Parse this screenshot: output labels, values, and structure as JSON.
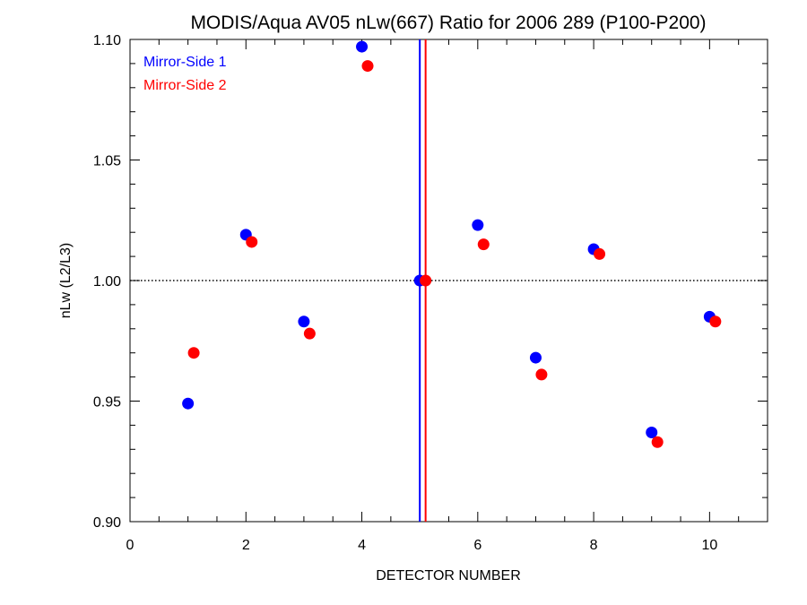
{
  "chart_data": {
    "type": "scatter",
    "title": "MODIS/Aqua AV05 nLw(667) Ratio for 2006 289 (P100-P200)",
    "xlabel": "DETECTOR NUMBER",
    "ylabel": "nLw (L2/L3)",
    "xlim": [
      0,
      11
    ],
    "ylim": [
      0.9,
      1.1
    ],
    "x_ticks": [
      0,
      2,
      4,
      6,
      8,
      10
    ],
    "x_tick_labels": [
      "0",
      "2",
      "4",
      "6",
      "8",
      "10"
    ],
    "y_ticks": [
      0.9,
      0.95,
      1.0,
      1.05,
      1.1
    ],
    "y_tick_labels": [
      "0.90",
      "0.95",
      "1.00",
      "1.05",
      "1.10"
    ],
    "x_minor_step": 0.5,
    "y_minor_step": 0.01,
    "grid": false,
    "legend_position": "top-left",
    "reference_line": {
      "y": 1.0,
      "style": "dotted",
      "color": "#000000"
    },
    "vertical_lines": [
      {
        "x": 5.0,
        "color": "#0000ff"
      },
      {
        "x": 5.1,
        "color": "#ff0000"
      }
    ],
    "series": [
      {
        "name": "Mirror-Side 1",
        "color": "#0000ff",
        "x": [
          1,
          2,
          3,
          4,
          5,
          6,
          7,
          8,
          9,
          10
        ],
        "y": [
          0.949,
          1.019,
          0.983,
          1.097,
          1.0,
          1.023,
          0.968,
          1.013,
          0.937,
          0.985
        ]
      },
      {
        "name": "Mirror-Side 2",
        "color": "#ff0000",
        "x": [
          1.1,
          2.1,
          3.1,
          4.1,
          5.1,
          6.1,
          7.1,
          8.1,
          9.1,
          10.1
        ],
        "y": [
          0.97,
          1.016,
          0.978,
          1.089,
          1.0,
          1.015,
          0.961,
          1.011,
          0.933,
          0.983
        ]
      }
    ]
  }
}
